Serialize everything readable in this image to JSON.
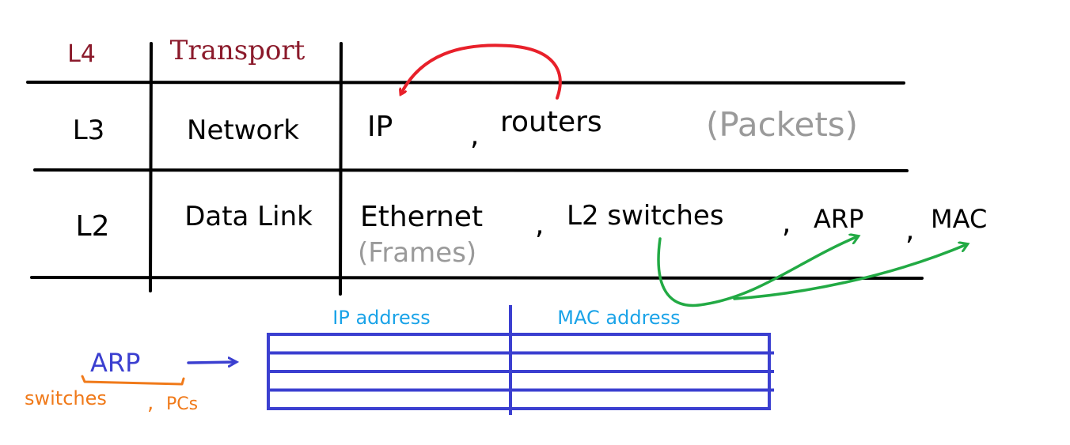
{
  "layers": [
    {
      "id": "l4",
      "label": "L4",
      "name": "Transport",
      "items": [],
      "unit": ""
    },
    {
      "id": "l3",
      "label": "L3",
      "name": "Network",
      "items": [
        "IP",
        ",",
        "routers"
      ],
      "unit": "(Packets)"
    },
    {
      "id": "l2",
      "label": "L2",
      "name": "Data Link",
      "items": [
        "Ethernet",
        ",",
        "L2 switches",
        ",",
        "ARP",
        ",",
        "MAC"
      ],
      "unit": "(Frames)"
    }
  ],
  "arp_table": {
    "columns": [
      "IP address",
      "MAC address"
    ],
    "row_count": 4
  },
  "arp_note": {
    "label": "ARP",
    "users_prefix": "switches",
    "users_separator": ",",
    "users_suffix": "PCs"
  },
  "colors": {
    "ink": "#000000",
    "l4": "#8b1a2b",
    "unit": "#9a9a9a",
    "red_arrow": "#e8202a",
    "green_arrow": "#22aa44",
    "table": "#3b3fd0",
    "header": "#1aa3e8",
    "arp": "#3b3fd0",
    "users": "#f07a1a"
  }
}
